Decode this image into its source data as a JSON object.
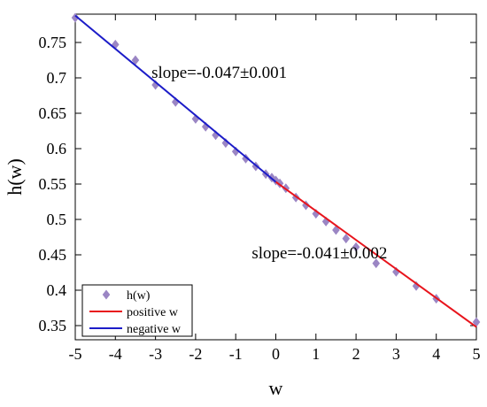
{
  "chart_data": {
    "type": "scatter",
    "xlabel": "w",
    "ylabel": "h(w)",
    "xlim": [
      -5,
      5
    ],
    "ylim": [
      0.33,
      0.79
    ],
    "xticks": [
      -5,
      -4,
      -3,
      -2,
      -1,
      0,
      1,
      2,
      3,
      4,
      5
    ],
    "yticks": [
      0.35,
      0.4,
      0.45,
      0.5,
      0.55,
      0.6,
      0.65,
      0.7,
      0.75
    ],
    "grid": false,
    "legend_position": "bottom-left",
    "series": [
      {
        "name": "h(w)",
        "kind": "marker",
        "marker": "diamond",
        "color": "#9b86c4",
        "points": [
          [
            -5,
            0.785
          ],
          [
            -4,
            0.747
          ],
          [
            -3.5,
            0.725
          ],
          [
            -3,
            0.69
          ],
          [
            -2.5,
            0.666
          ],
          [
            -2,
            0.642
          ],
          [
            -1.75,
            0.631
          ],
          [
            -1.5,
            0.619
          ],
          [
            -1.25,
            0.608
          ],
          [
            -1,
            0.596
          ],
          [
            -0.75,
            0.586
          ],
          [
            -0.5,
            0.575
          ],
          [
            -0.25,
            0.564
          ],
          [
            -0.1,
            0.559
          ],
          [
            0,
            0.555
          ],
          [
            0.1,
            0.551
          ],
          [
            0.25,
            0.544
          ],
          [
            0.5,
            0.531
          ],
          [
            0.75,
            0.52
          ],
          [
            1,
            0.508
          ],
          [
            1.25,
            0.497
          ],
          [
            1.5,
            0.485
          ],
          [
            1.75,
            0.473
          ],
          [
            2,
            0.461
          ],
          [
            2.5,
            0.438
          ],
          [
            3,
            0.426
          ],
          [
            3.5,
            0.406
          ],
          [
            4,
            0.388
          ],
          [
            5,
            0.355
          ]
        ]
      },
      {
        "name": "positive w",
        "kind": "line",
        "color": "#e8141c",
        "points": [
          [
            0,
            0.553
          ],
          [
            5,
            0.348
          ]
        ]
      },
      {
        "name": "negative w",
        "kind": "line",
        "color": "#1c1cc8",
        "points": [
          [
            -5,
            0.788
          ],
          [
            0,
            0.553
          ]
        ]
      }
    ],
    "annotations": [
      {
        "text": "slope=-0.047±0.001",
        "x": -3.1,
        "y": 0.7
      },
      {
        "text": "slope=-0.041±0.002",
        "x": -0.6,
        "y": 0.445
      }
    ]
  }
}
